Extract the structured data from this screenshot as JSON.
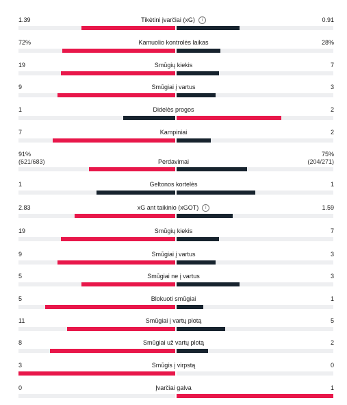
{
  "colors": {
    "home": "#e8174a",
    "away": "#17232e",
    "track": "#eeeff1"
  },
  "stats": [
    {
      "label": "Tikėtini įvarčiai (xG)",
      "info_icon": "info-icon",
      "home": "1.39",
      "away": "0.91",
      "home_share": 0.6,
      "away_share": 0.4,
      "home_lead": true,
      "away_lead": false
    },
    {
      "label": "Kamuolio kontrolės laikas",
      "home": "72%",
      "away": "28%",
      "home_share": 0.72,
      "away_share": 0.28,
      "home_lead": true,
      "away_lead": false
    },
    {
      "label": "Smūgių kiekis",
      "home": "19",
      "away": "7",
      "home_share": 0.73,
      "away_share": 0.27,
      "home_lead": true,
      "away_lead": false
    },
    {
      "label": "Smūgiai į vartus",
      "home": "9",
      "away": "3",
      "home_share": 0.75,
      "away_share": 0.25,
      "home_lead": true,
      "away_lead": false
    },
    {
      "label": "Didelės progos",
      "home": "1",
      "away": "2",
      "home_share": 0.33,
      "away_share": 0.67,
      "home_lead": false,
      "away_lead": true
    },
    {
      "label": "Kampiniai",
      "home": "7",
      "away": "2",
      "home_share": 0.78,
      "away_share": 0.22,
      "home_lead": true,
      "away_lead": false
    },
    {
      "label": "Perdavimai",
      "home": "91%",
      "away": "75%",
      "home_sub": "(621/683)",
      "away_sub": "(204/271)",
      "home_share": 0.55,
      "away_share": 0.45,
      "home_lead": true,
      "away_lead": false
    },
    {
      "label": "Geltonos kortelės",
      "home": "1",
      "away": "1",
      "home_share": 0.5,
      "away_share": 0.5,
      "home_lead": false,
      "away_lead": false
    },
    {
      "label": "xG ant taikinio (xGOT)",
      "info_icon": "info-icon",
      "home": "2.83",
      "away": "1.59",
      "home_share": 0.64,
      "away_share": 0.36,
      "home_lead": true,
      "away_lead": false
    },
    {
      "label": "Smūgių kiekis",
      "home": "19",
      "away": "7",
      "home_share": 0.73,
      "away_share": 0.27,
      "home_lead": true,
      "away_lead": false
    },
    {
      "label": "Smūgiai į vartus",
      "home": "9",
      "away": "3",
      "home_share": 0.75,
      "away_share": 0.25,
      "home_lead": true,
      "away_lead": false
    },
    {
      "label": "Smūgiai ne į vartus",
      "home": "5",
      "away": "3",
      "home_share": 0.6,
      "away_share": 0.4,
      "home_lead": true,
      "away_lead": false
    },
    {
      "label": "Blokuoti smūgiai",
      "home": "5",
      "away": "1",
      "home_share": 0.83,
      "away_share": 0.17,
      "home_lead": true,
      "away_lead": false
    },
    {
      "label": "Smūgiai į vartų plotą",
      "home": "11",
      "away": "5",
      "home_share": 0.69,
      "away_share": 0.31,
      "home_lead": true,
      "away_lead": false
    },
    {
      "label": "Smūgiai už vartų plotą",
      "home": "8",
      "away": "2",
      "home_share": 0.8,
      "away_share": 0.2,
      "home_lead": true,
      "away_lead": false
    },
    {
      "label": "Smūgis į virpstą",
      "home": "3",
      "away": "0",
      "home_share": 1.0,
      "away_share": 0.0,
      "home_lead": true,
      "away_lead": false
    },
    {
      "label": "Įvarčiai galva",
      "home": "0",
      "away": "1",
      "home_share": 0.0,
      "away_share": 1.0,
      "home_lead": false,
      "away_lead": true
    }
  ]
}
